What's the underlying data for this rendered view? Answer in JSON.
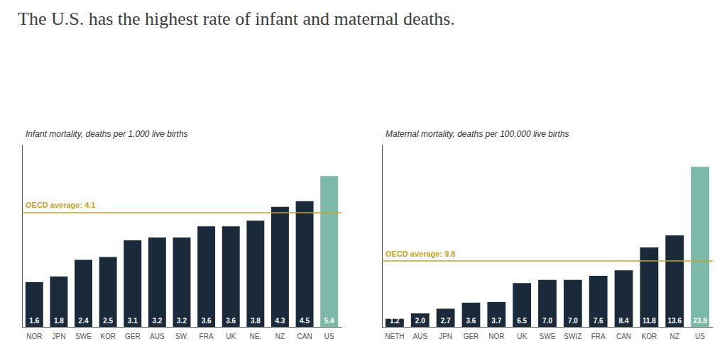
{
  "title": "The U.S. has the highest rate of infant and maternal deaths.",
  "chart_data": [
    {
      "type": "bar",
      "subtitle": "Infant mortality, deaths per 1,000 live births",
      "categories": [
        "NOR",
        "JPN",
        "SWE",
        "KOR",
        "GER",
        "AUS",
        "SW.",
        "FRA",
        "UK",
        "NE.",
        "NZ",
        "CAN",
        "US"
      ],
      "values": [
        1.6,
        1.8,
        2.4,
        2.5,
        3.1,
        3.2,
        3.2,
        3.6,
        3.6,
        3.8,
        4.3,
        4.5,
        5.4
      ],
      "colors": [
        "#1b2a3b",
        "#1b2a3b",
        "#1b2a3b",
        "#1b2a3b",
        "#1b2a3b",
        "#1b2a3b",
        "#1b2a3b",
        "#1b2a3b",
        "#1b2a3b",
        "#1b2a3b",
        "#1b2a3b",
        "#1b2a3b",
        "#7db9a8"
      ],
      "ylim": [
        0,
        6.5
      ],
      "grid": false,
      "tick_labels": "x",
      "data_labels": true,
      "reference_line": {
        "value": 4.1,
        "label": "OECD average: 4.1",
        "color": "#c9a227"
      }
    },
    {
      "type": "bar",
      "subtitle": "Maternal mortality, deaths per 100,000 live births",
      "categories": [
        "NETH",
        "AUS",
        "JPN",
        "GER",
        "NOR",
        "UK",
        "SWE",
        "SWIZ",
        "FRA",
        "CAN",
        "KOR",
        "NZ",
        "US"
      ],
      "values": [
        1.2,
        2.0,
        2.7,
        3.6,
        3.7,
        6.5,
        7.0,
        7.0,
        7.6,
        8.4,
        11.8,
        13.6,
        23.8
      ],
      "value_labels": [
        "1.2",
        "2.0",
        "2.7",
        "3.6",
        "3.7",
        "6.5",
        "7.0",
        "7.0",
        "7.6",
        "8.4",
        "11.8",
        "13.6",
        "23.8"
      ],
      "colors": [
        "#1b2a3b",
        "#1b2a3b",
        "#1b2a3b",
        "#1b2a3b",
        "#1b2a3b",
        "#1b2a3b",
        "#1b2a3b",
        "#1b2a3b",
        "#1b2a3b",
        "#1b2a3b",
        "#1b2a3b",
        "#1b2a3b",
        "#7db9a8"
      ],
      "ylim": [
        0,
        27
      ],
      "grid": false,
      "tick_labels": "x",
      "data_labels": true,
      "reference_line": {
        "value": 9.8,
        "label": "OECD average: 9.8",
        "color": "#c9a227"
      }
    }
  ]
}
